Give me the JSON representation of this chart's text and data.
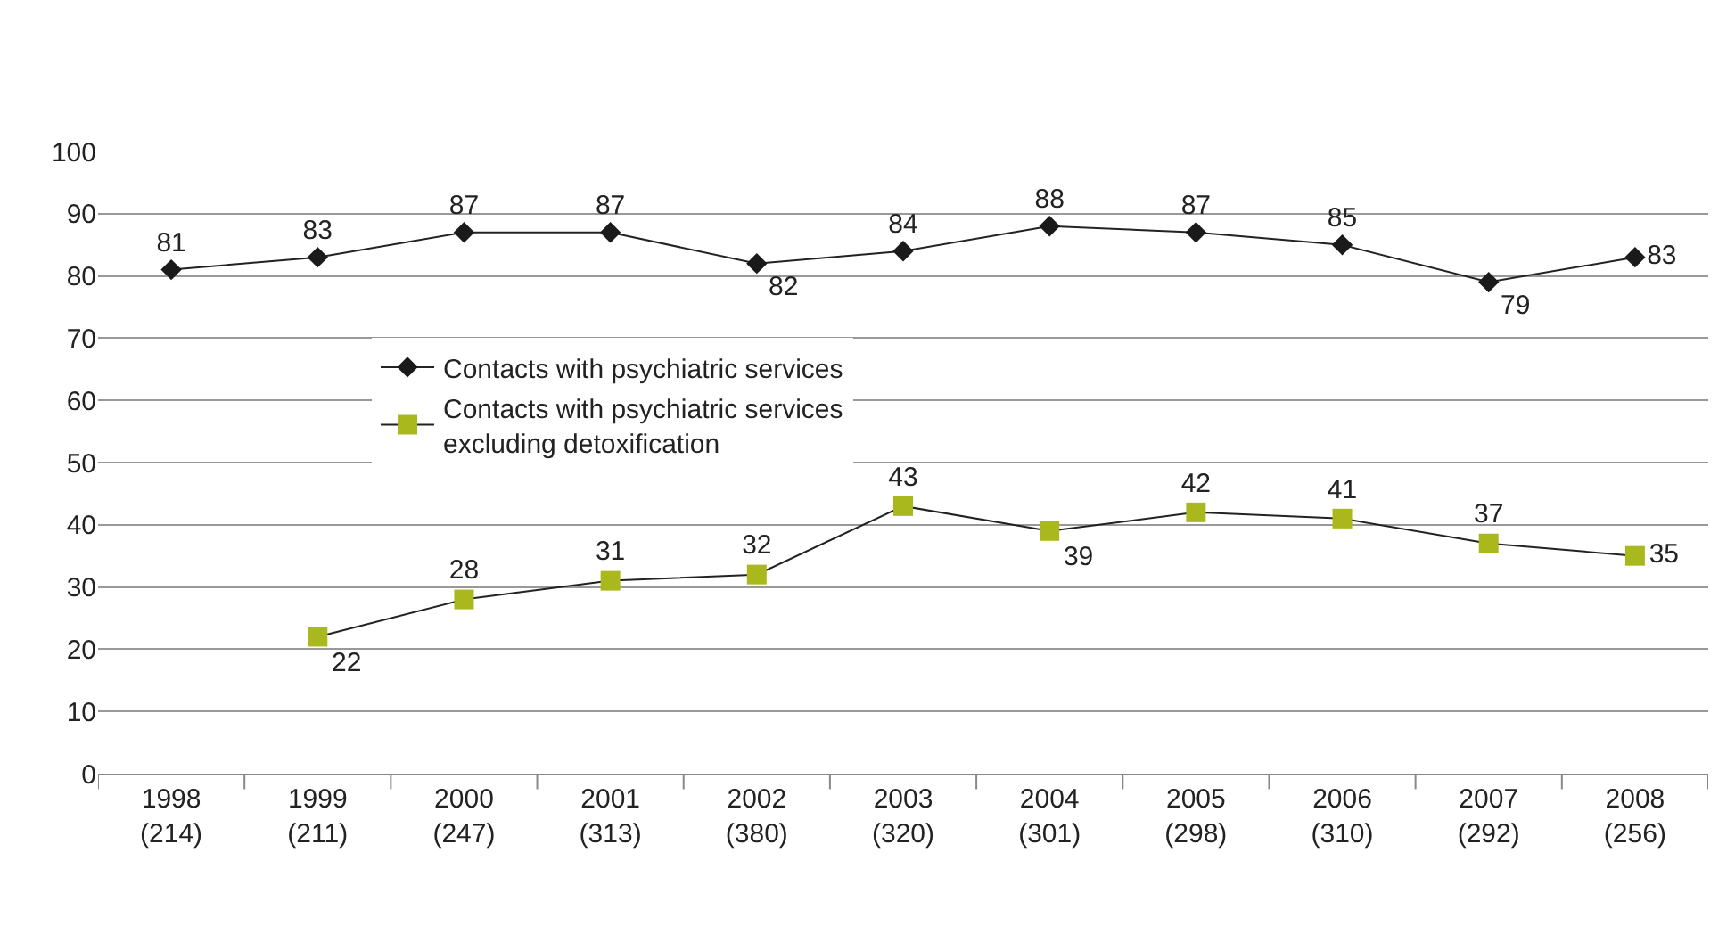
{
  "chart_data": {
    "type": "line",
    "categories": [
      "1998\n(214)",
      "1999\n(211)",
      "2000\n(247)",
      "2001\n(313)",
      "2002\n(380)",
      "2003\n(320)",
      "2004\n(301)",
      "2005\n(298)",
      "2006\n(310)",
      "2007\n(292)",
      "2008\n(256)"
    ],
    "series": [
      {
        "name": "Contacts with psychiatric services",
        "color": "#1a1a1a",
        "marker": "diamond",
        "values": [
          81,
          83,
          87,
          87,
          82,
          84,
          88,
          87,
          85,
          79,
          83
        ]
      },
      {
        "name": "Contacts with psychiatric services\nexcluding detoxification",
        "color": "#a9b81c",
        "marker": "square",
        "values": [
          null,
          22,
          28,
          31,
          32,
          43,
          39,
          42,
          41,
          37,
          35
        ]
      }
    ],
    "ylim": [
      0,
      100
    ],
    "yticks": [
      0,
      10,
      20,
      30,
      40,
      50,
      60,
      70,
      80,
      90,
      100
    ],
    "grid": "y",
    "legend": "left",
    "data_labels": true,
    "line_style": "solid"
  }
}
